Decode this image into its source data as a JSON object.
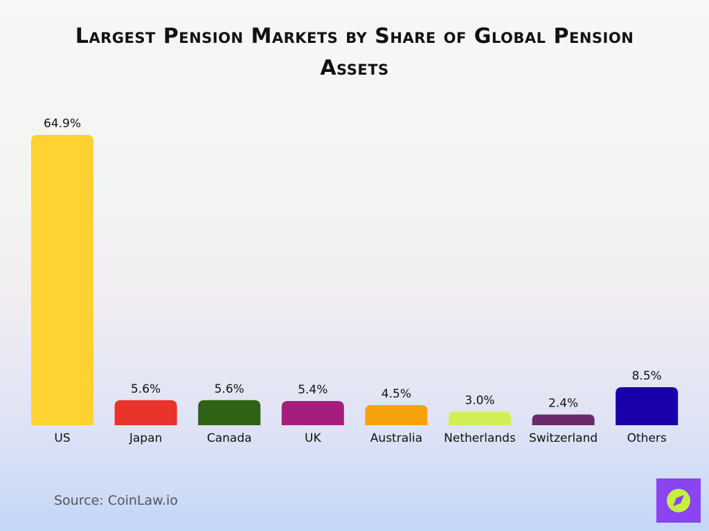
{
  "chart_data": {
    "type": "bar",
    "title": "Largest Pension Markets by Share of Global Pension Assets",
    "categories": [
      "US",
      "Japan",
      "Canada",
      "UK",
      "Australia",
      "Netherlands",
      "Switzerland",
      "Others"
    ],
    "values": [
      64.9,
      5.6,
      5.6,
      5.4,
      4.5,
      3.0,
      2.4,
      8.5
    ],
    "value_labels": [
      "64.9%",
      "5.6%",
      "5.6%",
      "5.4%",
      "4.5%",
      "3.0%",
      "2.4%",
      "8.5%"
    ],
    "colors": [
      "#fed231",
      "#e8342b",
      "#2e6214",
      "#a51e7e",
      "#f7a10d",
      "#d1ef55",
      "#6c2a6e",
      "#1a00a8"
    ],
    "source": "Source: CoinLaw.io"
  }
}
